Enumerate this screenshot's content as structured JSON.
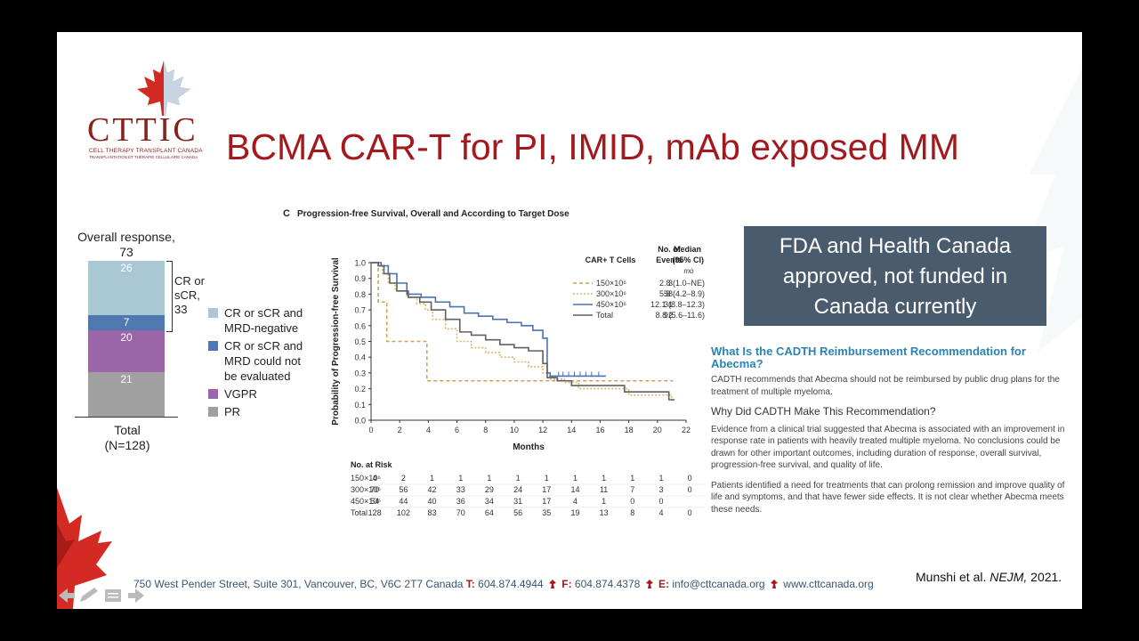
{
  "logo": {
    "word": "CTTIC",
    "line1": "CELL THERAPY TRANSPLANT CANADA",
    "line2": "TRANSPLANTATION ET THÉRAPIE CELLULAIRE CANADA"
  },
  "title": "BCMA CAR-T for PI, IMID, mAb exposed MM",
  "response_chart": {
    "title_line1": "Overall response,",
    "title_line2": "73",
    "segments": [
      {
        "label": "26",
        "value": 26,
        "color": "#a9c8d3"
      },
      {
        "label": "7",
        "value": 7,
        "color": "#4f78b0"
      },
      {
        "label": "20",
        "value": 20,
        "color": "#9a66a8"
      },
      {
        "label": "21",
        "value": 21,
        "color": "#a0a0a0"
      }
    ],
    "bracket_line1": "CR or",
    "bracket_line2": "sCR,",
    "bracket_line3": "33",
    "total_line1": "Total",
    "total_line2": "(N=128)",
    "legend": [
      {
        "line1": "CR or sCR and",
        "line2": "MRD-negative",
        "line3": "",
        "color": "#a9c8d3"
      },
      {
        "line1": "CR or sCR and",
        "line2": "MRD could not",
        "line3": "be evaluated",
        "color": "#4f78b0"
      },
      {
        "line1": "VGPR",
        "line2": "",
        "line3": "",
        "color": "#9a66a8"
      },
      {
        "line1": "PR",
        "line2": "",
        "line3": "",
        "color": "#a0a0a0"
      }
    ]
  },
  "chart_data": {
    "type": "line",
    "panel": "C",
    "title": "Progression-free Survival, Overall and According to Target Dose",
    "xlabel": "Months",
    "ylabel": "Probability of Progression-free Survival",
    "xlim": [
      0,
      22
    ],
    "ylim": [
      0,
      1.0
    ],
    "x_ticks": [
      "0",
      "2",
      "4",
      "6",
      "8",
      "10",
      "12",
      "14",
      "16",
      "18",
      "20",
      "22"
    ],
    "y_ticks": [
      "0.0",
      "0.1",
      "0.2",
      "0.3",
      "0.4",
      "0.5",
      "0.6",
      "0.7",
      "0.8",
      "0.9",
      "1.0"
    ],
    "legend_header": {
      "cells": "CAR+ T Cells",
      "events_1": "No. of",
      "events_2": "Events",
      "median_1": "Median",
      "median_2": "(95% CI)",
      "median_unit": "mo"
    },
    "series": [
      {
        "name": "150×10⁶",
        "events": "3",
        "median": "2.8 (1.0–NE)",
        "color": "#c9a45a",
        "dash": "4,3",
        "points": [
          [
            0,
            1.0
          ],
          [
            0.5,
            1.0
          ],
          [
            0.5,
            0.75
          ],
          [
            1.1,
            0.75
          ],
          [
            1.1,
            0.5
          ],
          [
            2.3,
            0.5
          ],
          [
            2.3,
            0.5
          ],
          [
            3.9,
            0.5
          ],
          [
            3.9,
            0.25
          ],
          [
            21.1,
            0.25
          ]
        ]
      },
      {
        "name": "300×10⁶",
        "events": "58",
        "median": "5.8 (4.2–8.9)",
        "color": "#d6b56a",
        "dash": "2,2",
        "points": [
          [
            0,
            1.0
          ],
          [
            0.5,
            0.98
          ],
          [
            0.8,
            0.93
          ],
          [
            1.2,
            0.87
          ],
          [
            1.7,
            0.82
          ],
          [
            2.5,
            0.78
          ],
          [
            3.2,
            0.74
          ],
          [
            3.8,
            0.7
          ],
          [
            4.3,
            0.64
          ],
          [
            5.2,
            0.58
          ],
          [
            6.0,
            0.5
          ],
          [
            7.0,
            0.46
          ],
          [
            8.0,
            0.43
          ],
          [
            9.0,
            0.4
          ],
          [
            10.0,
            0.37
          ],
          [
            11.0,
            0.34
          ],
          [
            12.0,
            0.3
          ],
          [
            12.5,
            0.26
          ],
          [
            13.5,
            0.24
          ],
          [
            14.5,
            0.2
          ],
          [
            17.5,
            0.2
          ],
          [
            18.0,
            0.16
          ],
          [
            20.5,
            0.16
          ],
          [
            21.0,
            0.13
          ],
          [
            21.2,
            0.13
          ]
        ]
      },
      {
        "name": "450×10⁶",
        "events": "31",
        "median": "12.1 (8.8–12.3)",
        "color": "#4b72b8",
        "dash": "",
        "points": [
          [
            0,
            1.0
          ],
          [
            0.7,
            0.98
          ],
          [
            1.2,
            0.93
          ],
          [
            1.8,
            0.87
          ],
          [
            2.5,
            0.8
          ],
          [
            3.5,
            0.78
          ],
          [
            4.5,
            0.75
          ],
          [
            5.5,
            0.72
          ],
          [
            6.5,
            0.68
          ],
          [
            7.5,
            0.66
          ],
          [
            8.5,
            0.64
          ],
          [
            9.5,
            0.62
          ],
          [
            10.5,
            0.6
          ],
          [
            11.3,
            0.57
          ],
          [
            12.0,
            0.52
          ],
          [
            12.3,
            0.3
          ],
          [
            12.5,
            0.28
          ],
          [
            16.4,
            0.28
          ]
        ]
      },
      {
        "name": "Total",
        "events": "92",
        "median": "8.8 (5.6–11.6)",
        "color": "#606060",
        "dash": "",
        "points": [
          [
            0,
            1.0
          ],
          [
            0.5,
            0.98
          ],
          [
            0.9,
            0.93
          ],
          [
            1.3,
            0.87
          ],
          [
            1.8,
            0.82
          ],
          [
            2.6,
            0.78
          ],
          [
            3.4,
            0.75
          ],
          [
            4.2,
            0.7
          ],
          [
            5.2,
            0.64
          ],
          [
            6.2,
            0.56
          ],
          [
            7.0,
            0.54
          ],
          [
            8.0,
            0.51
          ],
          [
            9.0,
            0.48
          ],
          [
            10.0,
            0.46
          ],
          [
            11.0,
            0.44
          ],
          [
            12.0,
            0.36
          ],
          [
            12.3,
            0.27
          ],
          [
            13.0,
            0.25
          ],
          [
            14.0,
            0.22
          ],
          [
            17.0,
            0.22
          ],
          [
            17.7,
            0.18
          ],
          [
            20.5,
            0.18
          ],
          [
            20.8,
            0.13
          ],
          [
            21.2,
            0.13
          ]
        ]
      }
    ],
    "risk_table": {
      "title": "No. at Risk",
      "rows": [
        {
          "label": "150×10⁶",
          "values": [
            "4",
            "2",
            "1",
            "1",
            "1",
            "1",
            "1",
            "1",
            "1",
            "1",
            "1",
            "0"
          ]
        },
        {
          "label": "300×10⁶",
          "values": [
            "70",
            "56",
            "42",
            "33",
            "29",
            "24",
            "17",
            "14",
            "11",
            "7",
            "3",
            "0"
          ]
        },
        {
          "label": "450×10⁶",
          "values": [
            "54",
            "44",
            "40",
            "36",
            "34",
            "31",
            "17",
            "4",
            "1",
            "0",
            "0",
            ""
          ]
        },
        {
          "label": "Total",
          "values": [
            "128",
            "102",
            "83",
            "70",
            "64",
            "56",
            "35",
            "19",
            "13",
            "8",
            "4",
            "0"
          ]
        }
      ]
    }
  },
  "fda_box": {
    "line1": "FDA and Health Canada",
    "line2": "approved, not funded in",
    "line3": "Canada currently"
  },
  "cadth": {
    "h1": "What Is the CADTH Reimbursement Recommendation for Abecma?",
    "p1": "CADTH recommends that Abecma should not be reimbursed by public drug plans for the treatment of multiple myeloma.",
    "h2": "Why Did CADTH Make This Recommendation?",
    "p2": "Evidence from a clinical trial suggested that Abecma is associated with an improvement in response rate in patients with heavily treated multiple myeloma. No conclusions could be drawn for other important outcomes, including duration of response, overall survival, progression-free survival, and quality of life.",
    "p3": "Patients identified a need for treatments that can prolong remission and improve quality of life and symptoms, and that have fewer side effects. It is not clear whether Abecma meets these needs."
  },
  "citation": {
    "authors": "Munshi et al.",
    "journal": "NEJM,",
    "year": "2021."
  },
  "footer": {
    "address": "750 West Pender Street, Suite 301, Vancouver, BC, V6C 2T7  Canada",
    "t_label": "T:",
    "t_value": "604.874.4944",
    "f_label": "F:",
    "f_value": "604.874.4378",
    "e_label": "E:",
    "e_value": "info@cttcanada.org",
    "web": "www.cttcanada.org"
  }
}
